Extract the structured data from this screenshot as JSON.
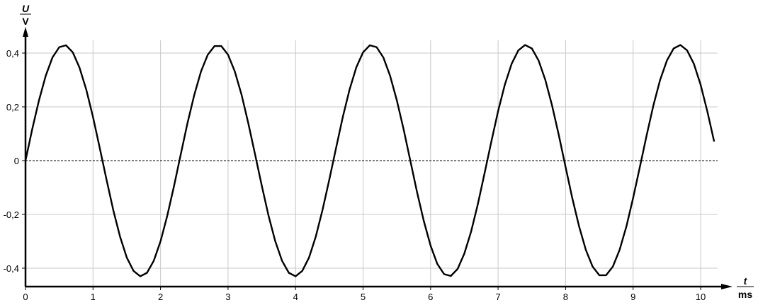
{
  "chart_data": {
    "type": "line",
    "xlabel": {
      "symbol": "t",
      "unit": "ms"
    },
    "ylabel": {
      "symbol": "U",
      "unit": "V"
    },
    "xlim": [
      0,
      10.3
    ],
    "ylim": [
      -0.468,
      0.46
    ],
    "grid": true,
    "zero_line": "dotted",
    "x_ticks": [
      0,
      1,
      2,
      3,
      4,
      5,
      6,
      7,
      8,
      9,
      10
    ],
    "x_tick_labels": [
      "0",
      "1",
      "2",
      "3",
      "4",
      "5",
      "6",
      "7",
      "8",
      "9",
      "10"
    ],
    "y_ticks": [
      0.4,
      0.2,
      0,
      -0.2,
      -0.4
    ],
    "y_tick_labels": [
      "0,4",
      "0,2",
      "0",
      "-0,2",
      "-0,4"
    ],
    "series": [
      {
        "color": "#000000",
        "x_step": 0.1,
        "values": [
          0,
          0.117,
          0.225,
          0.316,
          0.384,
          0.422,
          0.429,
          0.403,
          0.346,
          0.264,
          0.162,
          0.047,
          -0.071,
          -0.184,
          -0.282,
          -0.36,
          -0.41,
          -0.43,
          -0.417,
          -0.372,
          -0.3,
          -0.205,
          -0.094,
          0.024,
          0.14,
          0.245,
          0.332,
          0.394,
          0.426,
          0.426,
          0.394,
          0.332,
          0.245,
          0.139,
          0.024,
          -0.094,
          -0.205,
          -0.3,
          -0.372,
          -0.417,
          -0.43,
          -0.41,
          -0.36,
          -0.282,
          -0.183,
          -0.071,
          0.047,
          0.162,
          0.264,
          0.347,
          0.403,
          0.429,
          0.422,
          0.384,
          0.316,
          0.225,
          0.117,
          0,
          -0.117,
          -0.225,
          -0.316,
          -0.384,
          -0.422,
          -0.429,
          -0.403,
          -0.346,
          -0.264,
          -0.162,
          -0.047,
          0.071,
          0.184,
          0.282,
          0.36,
          0.41,
          0.43,
          0.417,
          0.372,
          0.3,
          0.205,
          0.094,
          -0.024,
          -0.14,
          -0.245,
          -0.332,
          -0.394,
          -0.426,
          -0.426,
          -0.394,
          -0.332,
          -0.245,
          -0.139,
          -0.024,
          0.094,
          0.205,
          0.3,
          0.372,
          0.417,
          0.43,
          0.41,
          0.36,
          0.282,
          0.183,
          0.071
        ]
      }
    ]
  }
}
